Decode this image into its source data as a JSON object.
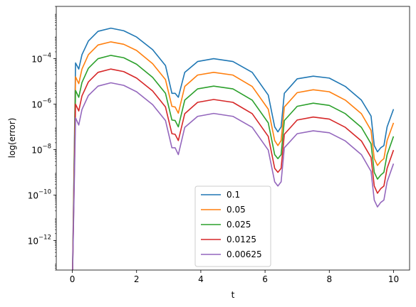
{
  "chart_data": {
    "type": "line",
    "title": "",
    "xlabel": "t",
    "ylabel": "log(error)",
    "y_scale": "log",
    "xlim": [
      -0.5,
      10.5
    ],
    "ylim": [
      5e-14,
      0.02
    ],
    "x_ticks": [
      0,
      2,
      4,
      6,
      8,
      10
    ],
    "x_tick_labels": [
      "0",
      "2",
      "4",
      "6",
      "8",
      "10"
    ],
    "y_ticks": [
      1e-12,
      1e-10,
      1e-08,
      1e-06,
      0.0001
    ],
    "y_tick_labels": [
      "10",
      "10",
      "10",
      "10",
      "10"
    ],
    "y_tick_exponents": [
      "−12",
      "−10",
      "−8",
      "−6",
      "−4"
    ],
    "grid": false,
    "legend_position": "lower-center",
    "series": [
      {
        "name": "0.1",
        "color": "#1f77b4",
        "points": [
          [
            0.0,
            1e-14
          ],
          [
            0.1,
            6.5e-05
          ],
          [
            0.2,
            3.5e-05
          ],
          [
            0.3,
            0.00015
          ],
          [
            0.5,
            0.0006
          ],
          [
            0.8,
            0.0016
          ],
          [
            1.2,
            0.0022
          ],
          [
            1.6,
            0.0017
          ],
          [
            2.0,
            0.0009
          ],
          [
            2.5,
            0.00025
          ],
          [
            2.9,
            5e-05
          ],
          [
            3.1,
            3e-06
          ],
          [
            3.2,
            3e-06
          ],
          [
            3.3,
            2e-06
          ],
          [
            3.5,
            2.5e-05
          ],
          [
            3.9,
            7.5e-05
          ],
          [
            4.4,
            0.0001
          ],
          [
            5.0,
            7.5e-05
          ],
          [
            5.6,
            2.5e-05
          ],
          [
            6.1,
            2.5e-06
          ],
          [
            6.3,
            1e-07
          ],
          [
            6.4,
            6e-08
          ],
          [
            6.5,
            1e-07
          ],
          [
            6.6,
            3e-06
          ],
          [
            7.0,
            1.3e-05
          ],
          [
            7.5,
            1.7e-05
          ],
          [
            8.0,
            1.4e-05
          ],
          [
            8.5,
            6e-06
          ],
          [
            9.0,
            1.5e-06
          ],
          [
            9.3,
            3e-07
          ],
          [
            9.4,
            1.5e-08
          ],
          [
            9.5,
            8e-09
          ],
          [
            9.6,
            1.2e-08
          ],
          [
            9.7,
            1.5e-08
          ],
          [
            9.8,
            1e-07
          ],
          [
            10.0,
            6e-07
          ]
        ]
      },
      {
        "name": "0.05",
        "color": "#ff7f0e",
        "points": [
          [
            0.0,
            1e-14
          ],
          [
            0.1,
            1.6e-05
          ],
          [
            0.2,
            8e-06
          ],
          [
            0.3,
            3.5e-05
          ],
          [
            0.5,
            0.00015
          ],
          [
            0.8,
            0.0004
          ],
          [
            1.2,
            0.00055
          ],
          [
            1.6,
            0.00043
          ],
          [
            2.0,
            0.00023
          ],
          [
            2.5,
            6e-05
          ],
          [
            2.9,
            1.2e-05
          ],
          [
            3.1,
            8e-07
          ],
          [
            3.2,
            7.5e-07
          ],
          [
            3.3,
            4e-07
          ],
          [
            3.5,
            6e-06
          ],
          [
            3.9,
            1.9e-05
          ],
          [
            4.4,
            2.5e-05
          ],
          [
            5.0,
            1.9e-05
          ],
          [
            5.6,
            6e-06
          ],
          [
            6.1,
            6e-07
          ],
          [
            6.3,
            2.5e-08
          ],
          [
            6.4,
            1.5e-08
          ],
          [
            6.5,
            2.5e-08
          ],
          [
            6.6,
            7.5e-07
          ],
          [
            7.0,
            3.2e-06
          ],
          [
            7.5,
            4.3e-06
          ],
          [
            8.0,
            3.5e-06
          ],
          [
            8.5,
            1.5e-06
          ],
          [
            9.0,
            3.8e-07
          ],
          [
            9.3,
            7e-08
          ],
          [
            9.4,
            4e-09
          ],
          [
            9.5,
            2e-09
          ],
          [
            9.6,
            3e-09
          ],
          [
            9.7,
            4e-09
          ],
          [
            9.8,
            2.5e-08
          ],
          [
            10.0,
            1.5e-07
          ]
        ]
      },
      {
        "name": "0.025",
        "color": "#2ca02c",
        "points": [
          [
            0.0,
            1e-14
          ],
          [
            0.1,
            4e-06
          ],
          [
            0.2,
            2e-06
          ],
          [
            0.3,
            9e-06
          ],
          [
            0.5,
            3.8e-05
          ],
          [
            0.8,
            0.0001
          ],
          [
            1.2,
            0.00014
          ],
          [
            1.6,
            0.00011
          ],
          [
            2.0,
            5.7e-05
          ],
          [
            2.5,
            1.5e-05
          ],
          [
            2.9,
            3e-06
          ],
          [
            3.1,
            2e-07
          ],
          [
            3.2,
            1.9e-07
          ],
          [
            3.3,
            1e-07
          ],
          [
            3.5,
            1.5e-06
          ],
          [
            3.9,
            4.7e-06
          ],
          [
            4.4,
            6.2e-06
          ],
          [
            5.0,
            4.7e-06
          ],
          [
            5.6,
            1.5e-06
          ],
          [
            6.1,
            1.5e-07
          ],
          [
            6.3,
            6e-09
          ],
          [
            6.4,
            4e-09
          ],
          [
            6.5,
            6e-09
          ],
          [
            6.6,
            1.9e-07
          ],
          [
            7.0,
            8e-07
          ],
          [
            7.5,
            1.1e-06
          ],
          [
            8.0,
            8.8e-07
          ],
          [
            8.5,
            3.8e-07
          ],
          [
            9.0,
            9.5e-08
          ],
          [
            9.3,
            1.8e-08
          ],
          [
            9.4,
            1e-09
          ],
          [
            9.5,
            5e-10
          ],
          [
            9.6,
            7.5e-10
          ],
          [
            9.7,
            1e-09
          ],
          [
            9.8,
            6e-09
          ],
          [
            10.0,
            3.8e-08
          ]
        ]
      },
      {
        "name": "0.0125",
        "color": "#d62728",
        "points": [
          [
            0.0,
            1e-14
          ],
          [
            0.1,
            1e-06
          ],
          [
            0.2,
            5e-07
          ],
          [
            0.3,
            2.3e-06
          ],
          [
            0.5,
            9.5e-06
          ],
          [
            0.8,
            2.5e-05
          ],
          [
            1.2,
            3.5e-05
          ],
          [
            1.6,
            2.7e-05
          ],
          [
            2.0,
            1.4e-05
          ],
          [
            2.5,
            3.8e-06
          ],
          [
            2.9,
            7.5e-07
          ],
          [
            3.1,
            5e-08
          ],
          [
            3.2,
            4.7e-08
          ],
          [
            3.3,
            2.5e-08
          ],
          [
            3.5,
            3.8e-07
          ],
          [
            3.9,
            1.2e-06
          ],
          [
            4.4,
            1.6e-06
          ],
          [
            5.0,
            1.2e-06
          ],
          [
            5.6,
            3.8e-07
          ],
          [
            6.1,
            3.8e-08
          ],
          [
            6.3,
            1.5e-09
          ],
          [
            6.4,
            1e-09
          ],
          [
            6.5,
            1.5e-09
          ],
          [
            6.6,
            4.7e-08
          ],
          [
            7.0,
            2e-07
          ],
          [
            7.5,
            2.7e-07
          ],
          [
            8.0,
            2.2e-07
          ],
          [
            8.5,
            9.5e-08
          ],
          [
            9.0,
            2.4e-08
          ],
          [
            9.3,
            4.5e-09
          ],
          [
            9.4,
            2.5e-10
          ],
          [
            9.5,
            1.2e-10
          ],
          [
            9.6,
            1.9e-10
          ],
          [
            9.7,
            2.5e-10
          ],
          [
            9.8,
            1.5e-09
          ],
          [
            10.0,
            9.5e-09
          ]
        ]
      },
      {
        "name": "0.00625",
        "color": "#9467bd",
        "points": [
          [
            0.0,
            1e-14
          ],
          [
            0.1,
            2.5e-07
          ],
          [
            0.2,
            1.2e-07
          ],
          [
            0.3,
            5.8e-07
          ],
          [
            0.5,
            2.4e-06
          ],
          [
            0.8,
            6.2e-06
          ],
          [
            1.2,
            8.7e-06
          ],
          [
            1.6,
            6.7e-06
          ],
          [
            2.0,
            3.5e-06
          ],
          [
            2.5,
            9.5e-07
          ],
          [
            2.9,
            1.9e-07
          ],
          [
            3.1,
            1.2e-08
          ],
          [
            3.2,
            1.2e-08
          ],
          [
            3.3,
            6e-09
          ],
          [
            3.5,
            9.5e-08
          ],
          [
            3.9,
            2.9e-07
          ],
          [
            4.4,
            3.9e-07
          ],
          [
            5.0,
            2.9e-07
          ],
          [
            5.6,
            9.5e-08
          ],
          [
            6.1,
            9.5e-09
          ],
          [
            6.3,
            3.8e-10
          ],
          [
            6.4,
            2.5e-10
          ],
          [
            6.5,
            3.8e-10
          ],
          [
            6.6,
            1.2e-08
          ],
          [
            7.0,
            5e-08
          ],
          [
            7.5,
            6.7e-08
          ],
          [
            8.0,
            5.5e-08
          ],
          [
            8.5,
            2.4e-08
          ],
          [
            9.0,
            6e-09
          ],
          [
            9.3,
            1.1e-09
          ],
          [
            9.4,
            6e-11
          ],
          [
            9.5,
            3e-11
          ],
          [
            9.6,
            4.7e-11
          ],
          [
            9.7,
            6e-11
          ],
          [
            9.8,
            3.8e-10
          ],
          [
            10.0,
            2.4e-09
          ]
        ]
      }
    ]
  }
}
